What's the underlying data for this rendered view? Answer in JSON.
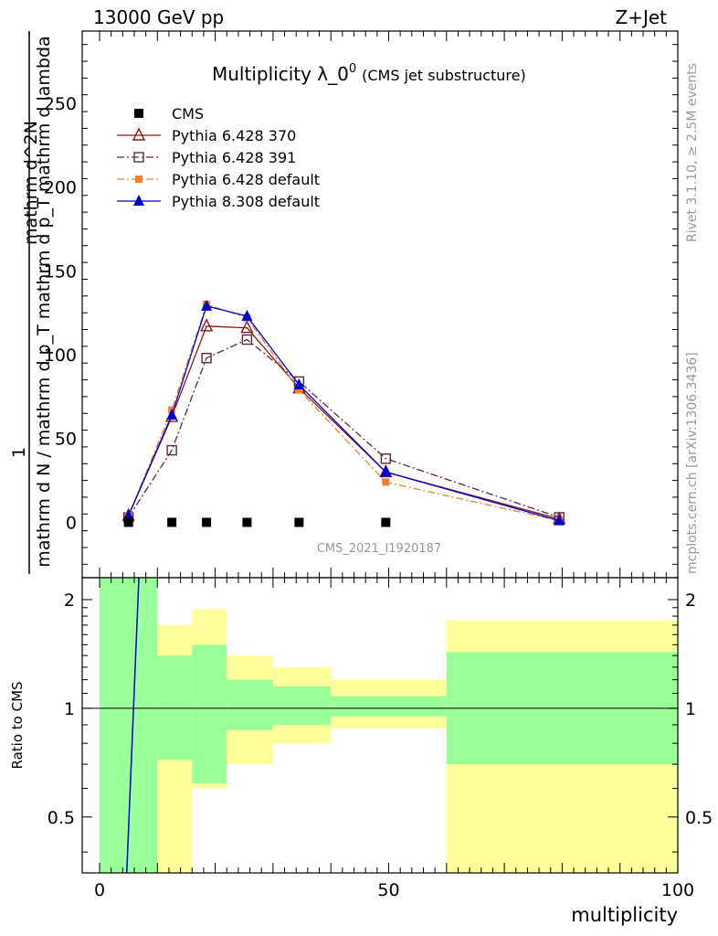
{
  "header": {
    "left": "13000 GeV pp",
    "right": "Z+Jet"
  },
  "plot_title": {
    "main": "Multiplicity λ_0",
    "superscript": "0",
    "paren": "(CMS jet substructure)"
  },
  "watermark": "CMS_2021_I1920187",
  "side_right_top": "Rivet 3.1.10, ≥ 2.5M events",
  "side_right_bottom": "mcplots.cern.ch [arXiv:1306.3436]",
  "colors": {
    "cms": "#000000",
    "p370": "#8b1a1a",
    "p391": "#5a2a3a",
    "p6def": "#f08030",
    "p8def": "#0000cc",
    "band_green": "#99ff99",
    "band_yellow": "#ffff99"
  },
  "chart_data": [
    {
      "type": "line",
      "xlim": [
        -3,
        100
      ],
      "ylim": [
        -33,
        293
      ],
      "ylabel_lines": [
        "1",
        "mathrm d N / mathrm d p_T mathrm d p_T mathrm d lambda",
        "mathrm d^2N"
      ],
      "yticks": [
        0,
        50,
        100,
        150,
        200,
        250
      ],
      "series": [
        {
          "name": "CMS",
          "key": "cms",
          "marker": "square-filled",
          "dash": "none",
          "x": [
            5,
            12.5,
            18.5,
            25.5,
            34.5,
            49.5
          ],
          "y": [
            0,
            0,
            0,
            0,
            0,
            0
          ]
        },
        {
          "name": "Pythia 6.428 370",
          "key": "p370",
          "marker": "triangle-open",
          "dash": "solid",
          "x": [
            5,
            12.5,
            18.5,
            25.5,
            34.5,
            49.5,
            79.5
          ],
          "y": [
            4,
            63,
            117,
            116,
            80,
            30,
            2
          ]
        },
        {
          "name": "Pythia 6.428 391",
          "key": "p391",
          "marker": "square-open",
          "dash": "dashdot",
          "x": [
            5,
            12.5,
            18.5,
            25.5,
            34.5,
            49.5,
            79.5
          ],
          "y": [
            3,
            43,
            98,
            109,
            84,
            38,
            3
          ]
        },
        {
          "name": "Pythia 6.428 default",
          "key": "p6def",
          "marker": "square-filled-small",
          "dash": "dashdot",
          "x": [
            5,
            12.5,
            18.5,
            25.5,
            34.5,
            49.5,
            79.5
          ],
          "y": [
            4,
            67,
            130,
            122,
            79,
            24,
            1
          ]
        },
        {
          "name": "Pythia 8.308 default",
          "key": "p8def",
          "marker": "triangle-filled",
          "dash": "solid",
          "x": [
            5,
            12.5,
            18.5,
            25.5,
            34.5,
            49.5,
            79.5
          ],
          "y": [
            4,
            64,
            129,
            123,
            82,
            30,
            1
          ]
        }
      ]
    },
    {
      "type": "area",
      "xlim": [
        -3,
        100
      ],
      "ylim": [
        0.35,
        2.3
      ],
      "ylabel": "Ratio to CMS",
      "xlabel": "multiplicity",
      "xticks": [
        0,
        50,
        100
      ],
      "yticks": [
        0.5,
        1,
        2
      ],
      "reference_line": 1,
      "bins": [
        {
          "x0": 0,
          "x1": 10,
          "g_lo": 0.35,
          "g_hi": 2.3,
          "y_lo": 0.35,
          "y_hi": 2.3
        },
        {
          "x0": 10,
          "x1": 16,
          "g_lo": 0.72,
          "g_hi": 1.4,
          "y_lo": 0.35,
          "y_hi": 1.7
        },
        {
          "x0": 16,
          "x1": 22,
          "g_lo": 0.62,
          "g_hi": 1.5,
          "y_lo": 0.6,
          "y_hi": 1.88
        },
        {
          "x0": 22,
          "x1": 30,
          "g_lo": 0.87,
          "g_hi": 1.2,
          "y_lo": 0.7,
          "y_hi": 1.4
        },
        {
          "x0": 30,
          "x1": 40,
          "g_lo": 0.9,
          "g_hi": 1.15,
          "y_lo": 0.8,
          "y_hi": 1.3
        },
        {
          "x0": 40,
          "x1": 60,
          "g_lo": 0.95,
          "g_hi": 1.08,
          "y_lo": 0.88,
          "y_hi": 1.2
        },
        {
          "x0": 60,
          "x1": 100,
          "g_lo": 0.7,
          "g_hi": 1.43,
          "y_lo": 0.35,
          "y_hi": 1.75
        }
      ],
      "ratio_line": {
        "key": "p8def",
        "x": [
          4.7,
          6.8
        ],
        "y": [
          0.35,
          2.3
        ]
      }
    }
  ]
}
